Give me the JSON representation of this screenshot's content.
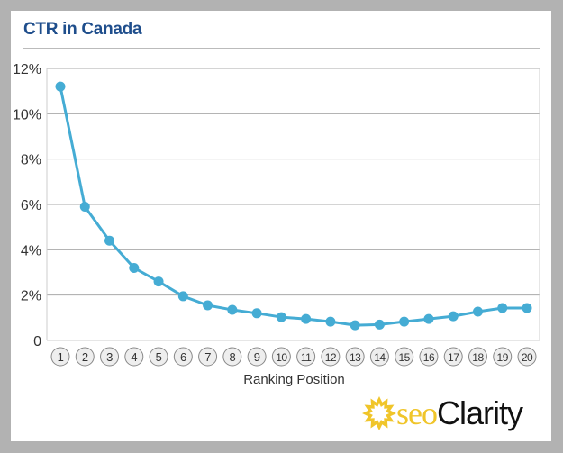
{
  "chart_data": {
    "type": "line",
    "title": "CTR in Canada",
    "xlabel": "Ranking Position",
    "ylabel": "",
    "categories": [
      "1",
      "2",
      "3",
      "4",
      "5",
      "6",
      "7",
      "8",
      "9",
      "10",
      "11",
      "12",
      "13",
      "14",
      "15",
      "16",
      "17",
      "18",
      "19",
      "20"
    ],
    "values": [
      11.2,
      5.9,
      4.4,
      3.2,
      2.6,
      1.95,
      1.55,
      1.35,
      1.2,
      1.03,
      0.95,
      0.83,
      0.67,
      0.7,
      0.83,
      0.95,
      1.07,
      1.27,
      1.43,
      1.43
    ],
    "yticks": [
      "0",
      "2%",
      "4%",
      "6%",
      "8%",
      "10%",
      "12%"
    ],
    "ylim": [
      0,
      12
    ],
    "grid": true,
    "line_color": "#45acd4"
  },
  "logo": {
    "part1": "seo",
    "part2": "Clarity"
  }
}
